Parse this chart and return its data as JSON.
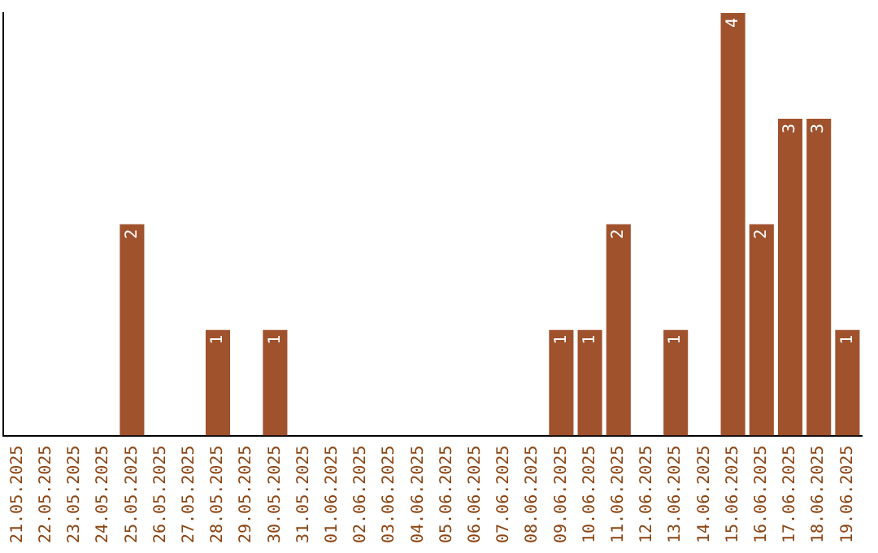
{
  "chart_data": {
    "type": "bar",
    "categories": [
      "21.05.2025",
      "22.05.2025",
      "23.05.2025",
      "24.05.2025",
      "25.05.2025",
      "26.05.2025",
      "27.05.2025",
      "28.05.2025",
      "29.05.2025",
      "30.05.2025",
      "31.05.2025",
      "01.06.2025",
      "02.06.2025",
      "03.06.2025",
      "04.06.2025",
      "05.06.2025",
      "06.06.2025",
      "07.06.2025",
      "08.06.2025",
      "09.06.2025",
      "10.06.2025",
      "11.06.2025",
      "12.06.2025",
      "13.06.2025",
      "14.06.2025",
      "15.06.2025",
      "16.06.2025",
      "17.06.2025",
      "18.06.2025",
      "19.06.2025"
    ],
    "values": [
      0,
      0,
      0,
      0,
      2,
      0,
      0,
      1,
      0,
      1,
      0,
      0,
      0,
      0,
      0,
      0,
      0,
      0,
      0,
      1,
      1,
      2,
      0,
      1,
      0,
      4,
      2,
      3,
      3,
      1
    ],
    "value_labels": [
      null,
      null,
      null,
      null,
      "2",
      null,
      null,
      "1",
      null,
      "1",
      null,
      null,
      null,
      null,
      null,
      null,
      null,
      null,
      null,
      "1",
      "1",
      "2",
      null,
      "1",
      null,
      "4",
      "2",
      "3",
      "3",
      "1"
    ],
    "color": "#a0522d",
    "grid": false,
    "legend": false,
    "tick_labels": "x"
  }
}
